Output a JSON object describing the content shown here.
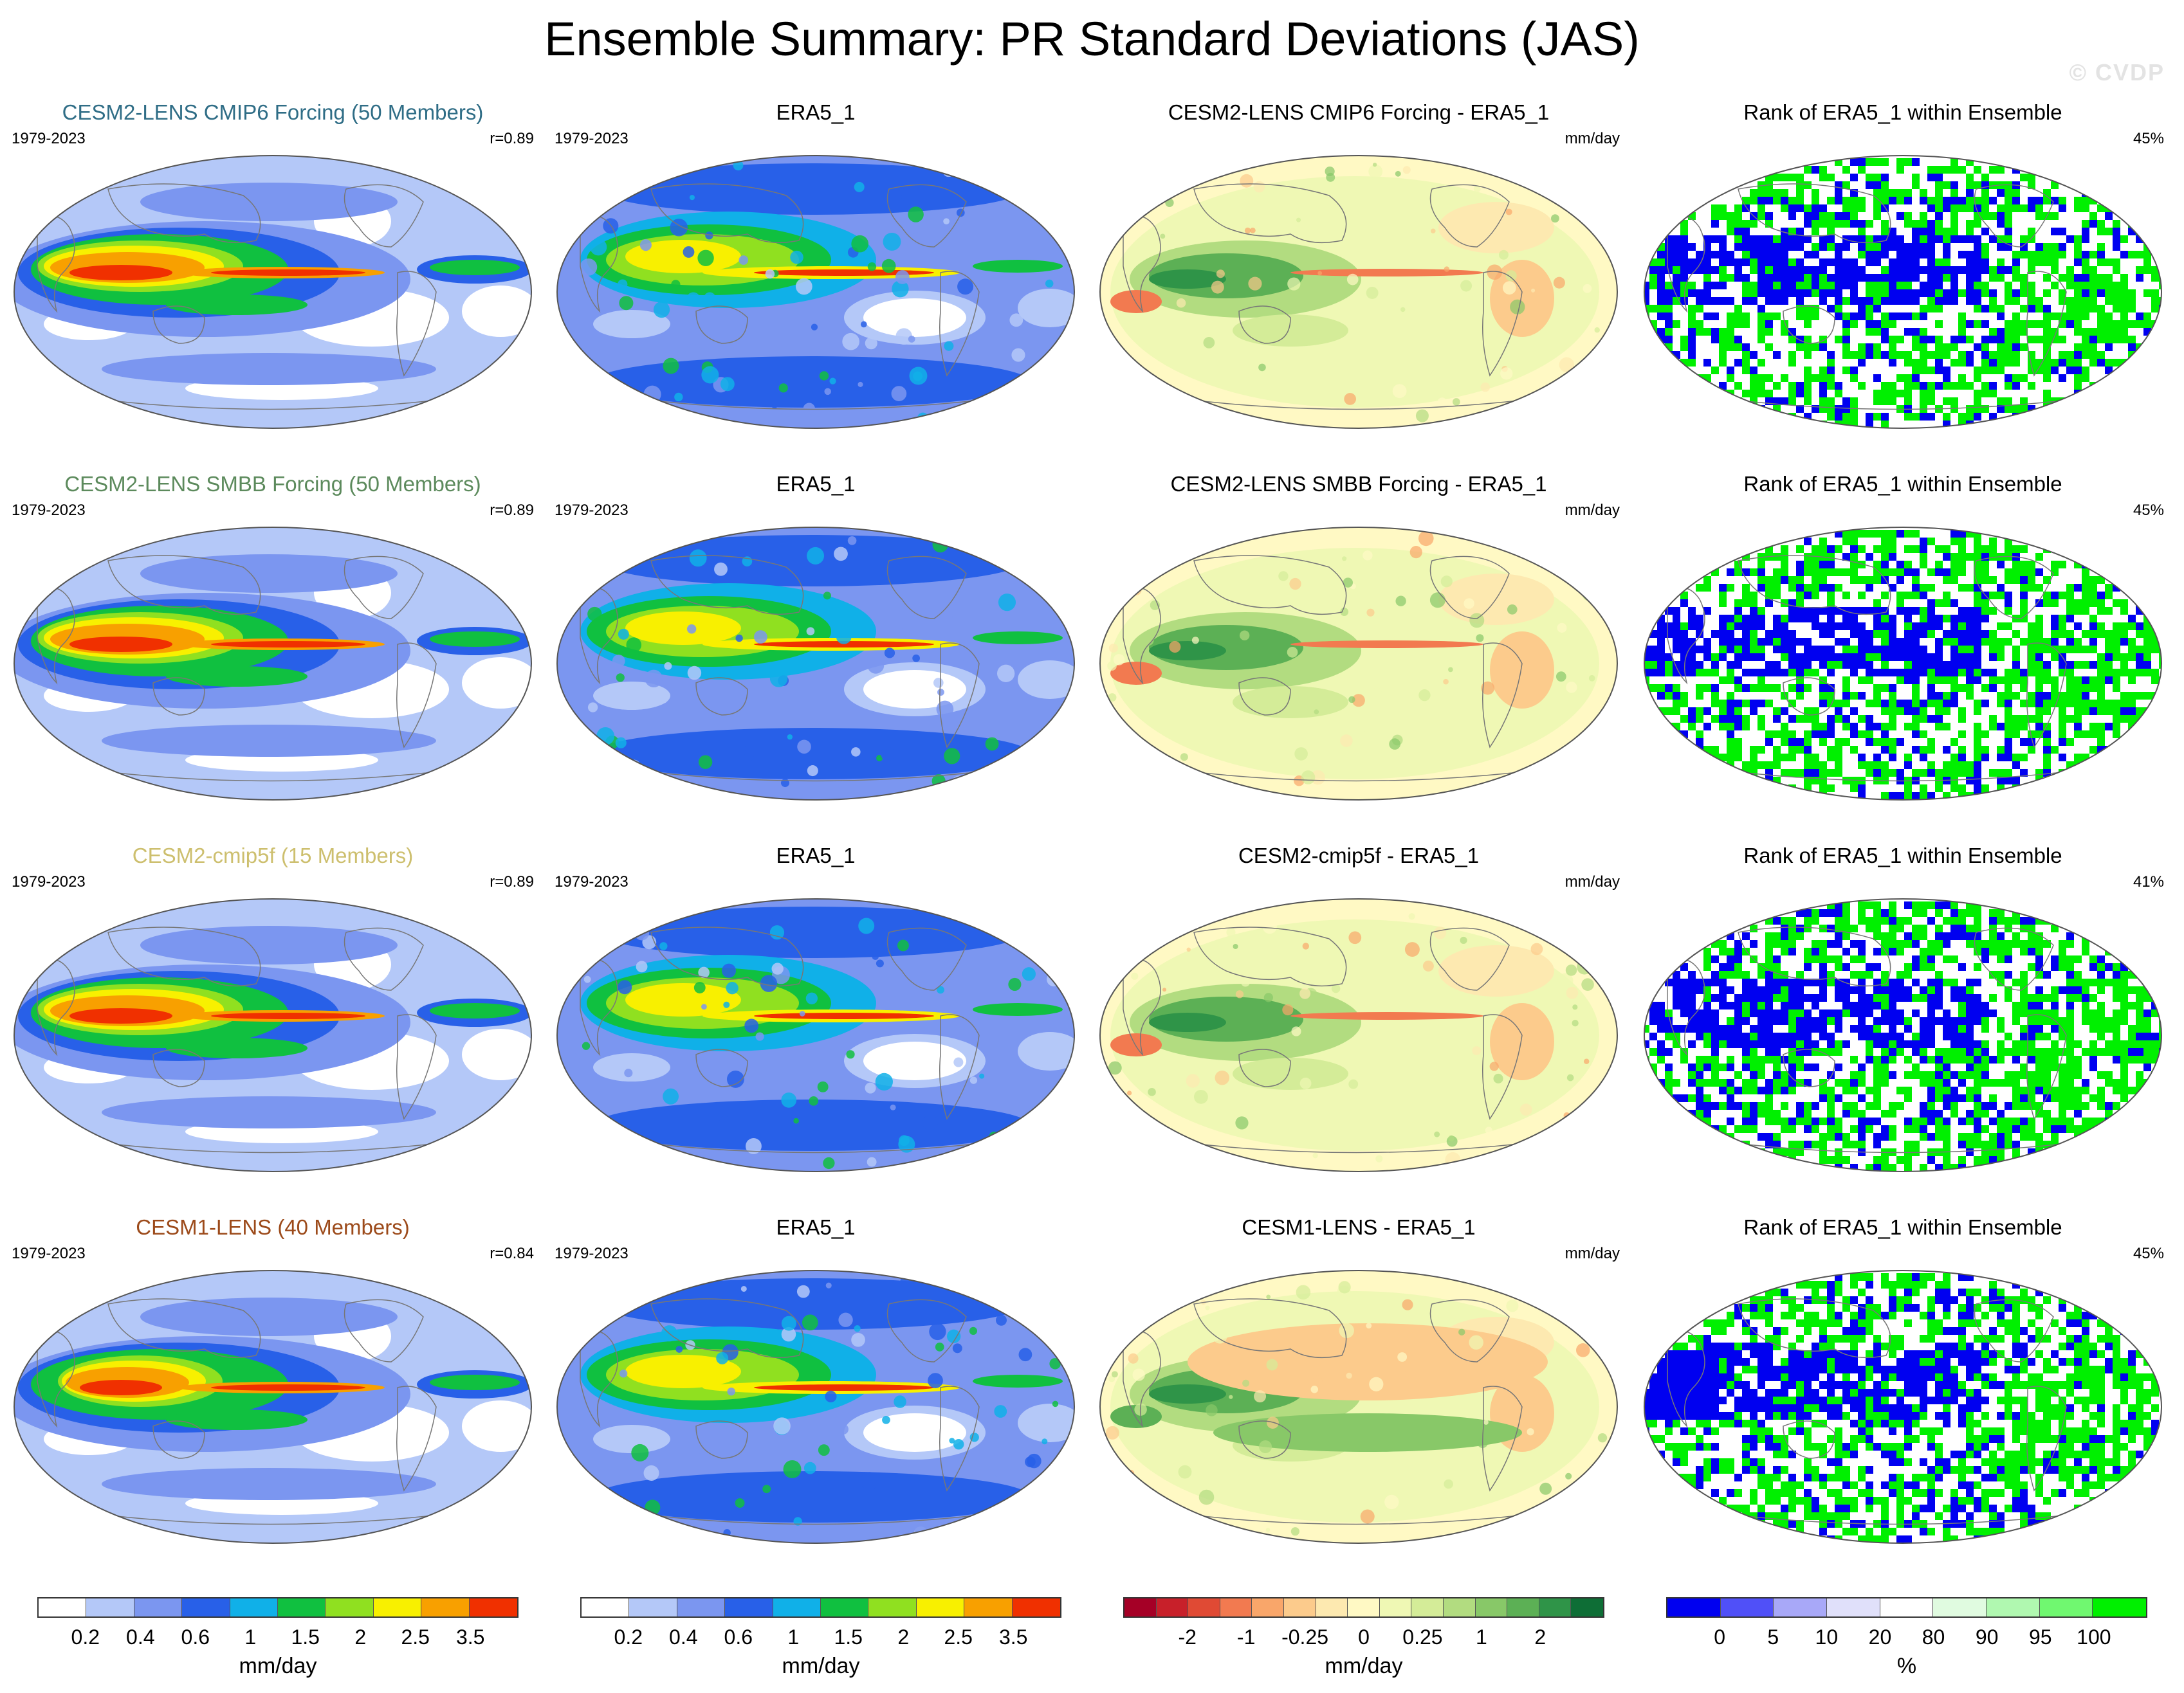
{
  "title": "Ensemble Summary: PR Standard Deviations (JAS)",
  "watermark": "© CVDP",
  "rows": [
    {
      "model": {
        "title": "CESM2-LENS CMIP6 Forcing (50 Members)",
        "title_color": "#2f6d86",
        "period": "1979-2023",
        "r": "r=0.89"
      },
      "obs": {
        "title": "ERA5_1",
        "period": "1979-2023"
      },
      "diff": {
        "title": "CESM2-LENS CMIP6 Forcing - ERA5_1",
        "units": "mm/day"
      },
      "rank": {
        "title": "Rank of ERA5_1 within Ensemble",
        "pct": "45%"
      }
    },
    {
      "model": {
        "title": "CESM2-LENS SMBB Forcing (50 Members)",
        "title_color": "#5c8a5c",
        "period": "1979-2023",
        "r": "r=0.89"
      },
      "obs": {
        "title": "ERA5_1",
        "period": "1979-2023"
      },
      "diff": {
        "title": "CESM2-LENS SMBB Forcing - ERA5_1",
        "units": "mm/day"
      },
      "rank": {
        "title": "Rank of ERA5_1 within Ensemble",
        "pct": "45%"
      }
    },
    {
      "model": {
        "title": "CESM2-cmip5f (15 Members)",
        "title_color": "#cdbf6e",
        "period": "1979-2023",
        "r": "r=0.89"
      },
      "obs": {
        "title": "ERA5_1",
        "period": "1979-2023"
      },
      "diff": {
        "title": "CESM2-cmip5f - ERA5_1",
        "units": "mm/day"
      },
      "rank": {
        "title": "Rank of ERA5_1 within Ensemble",
        "pct": "41%"
      }
    },
    {
      "model": {
        "title": "CESM1-LENS (40 Members)",
        "title_color": "#9c4a1a",
        "period": "1979-2023",
        "r": "r=0.84"
      },
      "obs": {
        "title": "ERA5_1",
        "period": "1979-2023"
      },
      "diff": {
        "title": "CESM1-LENS - ERA5_1",
        "units": "mm/day"
      },
      "rank": {
        "title": "Rank of ERA5_1 within Ensemble",
        "pct": "45%"
      }
    }
  ],
  "colorbars": {
    "std": {
      "colors": [
        "#ffffff",
        "#b4c8f8",
        "#7b96f0",
        "#2860e8",
        "#10b0e8",
        "#10c040",
        "#90e020",
        "#f8f000",
        "#f8a000",
        "#f03000"
      ],
      "ticks": [
        "0.2",
        "0.4",
        "0.6",
        "1",
        "1.5",
        "2",
        "2.5",
        "3.5"
      ],
      "units": "mm/day"
    },
    "diff": {
      "colors": [
        "#a50026",
        "#c8202a",
        "#e04a34",
        "#f27a50",
        "#f9a66a",
        "#fccb8c",
        "#fde9b0",
        "#fff9c4",
        "#eff8b4",
        "#d4ec98",
        "#b2dc80",
        "#88c868",
        "#5cb055",
        "#2f9448",
        "#0e6e36"
      ],
      "ticks": [
        "-2",
        "-1",
        "-0.25",
        "0",
        "0.25",
        "1",
        "2"
      ],
      "units": "mm/day"
    },
    "rank": {
      "colors": [
        "#0000f0",
        "#5050f8",
        "#a8a8f8",
        "#e0e0fa",
        "#ffffff",
        "#e0fbe0",
        "#b0f8b0",
        "#70f870",
        "#00f000"
      ],
      "ticks": [
        "0",
        "5",
        "10",
        "20",
        "80",
        "90",
        "95",
        "100"
      ],
      "units": "%"
    }
  }
}
